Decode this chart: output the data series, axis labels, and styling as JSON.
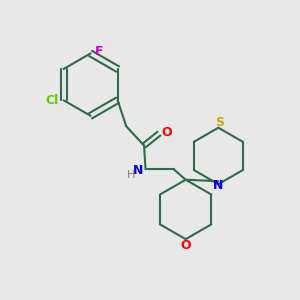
{
  "background_color": "#e8e8e8",
  "bond_color": "#2d6b4a",
  "atom_colors": {
    "F": "#cc00cc",
    "Cl": "#66cc00",
    "O_carbonyl": "#ff0000",
    "N": "#0000ff",
    "H": "#808080",
    "S": "#ccaa00",
    "O_ring": "#ff0000"
  },
  "figsize": [
    3.0,
    3.0
  ],
  "dpi": 100
}
